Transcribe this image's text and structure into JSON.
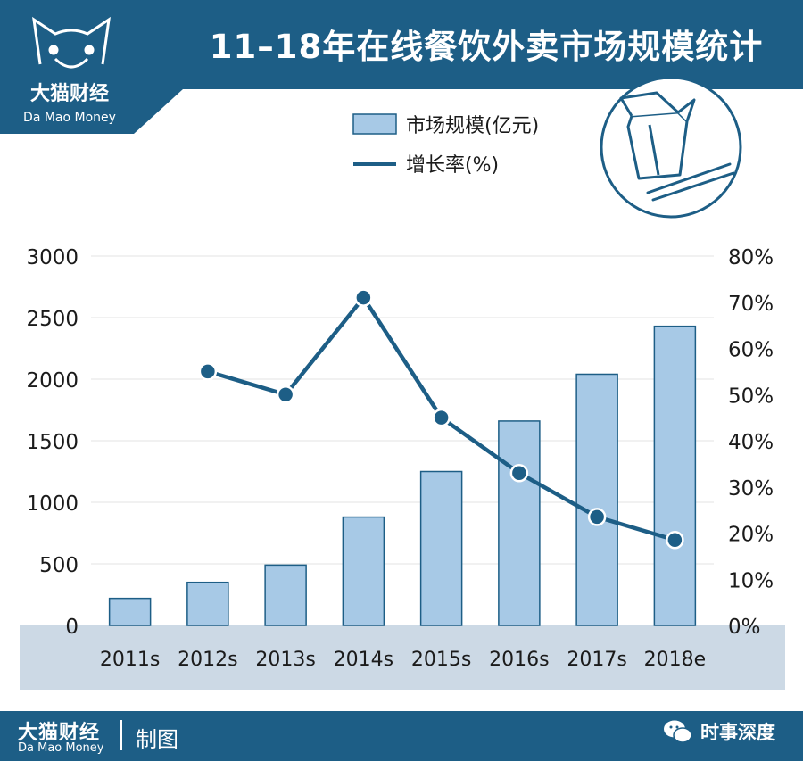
{
  "header": {
    "title": "11–18年在线餐饮外卖市场规模统计",
    "brand_cn": "大猫财经",
    "brand_en": "Da Mao Money"
  },
  "colors": {
    "brand_blue": "#1d5e86",
    "bar_fill": "#a7c9e6",
    "bar_stroke": "#1d5e86",
    "line": "#1d5e86",
    "xband": "#ccd9e5"
  },
  "icons": [
    "cat-logo-icon",
    "takeout-box-icon",
    "chopsticks-icon",
    "wechat-icon"
  ],
  "chart_data": {
    "type": "bar",
    "categories": [
      "2011s",
      "2012s",
      "2013s",
      "2014s",
      "2015s",
      "2016s",
      "2017s",
      "2018e"
    ],
    "series": [
      {
        "name": "市场规模(亿元)",
        "kind": "bar",
        "axis": "left",
        "values": [
          220,
          350,
          490,
          880,
          1250,
          1660,
          2040,
          2430
        ]
      },
      {
        "name": "增长率(%)",
        "kind": "line",
        "axis": "right",
        "values": [
          null,
          55,
          50,
          71,
          45,
          33,
          23.5,
          18.5
        ]
      }
    ],
    "y_left": {
      "range": [
        0,
        3000
      ],
      "ticks": [
        "0",
        "500",
        "1000",
        "1500",
        "2000",
        "2500",
        "3000"
      ]
    },
    "y_right": {
      "range": [
        0,
        80
      ],
      "ticks": [
        "0%",
        "10%",
        "20%",
        "30%",
        "40%",
        "50%",
        "60%",
        "70%",
        "80%"
      ]
    },
    "grid": true,
    "legend_position": "top-center"
  },
  "footer": {
    "brand_cn": "大猫财经",
    "brand_en": "Da Mao Money",
    "credit": "制图",
    "source": "时事深度"
  }
}
